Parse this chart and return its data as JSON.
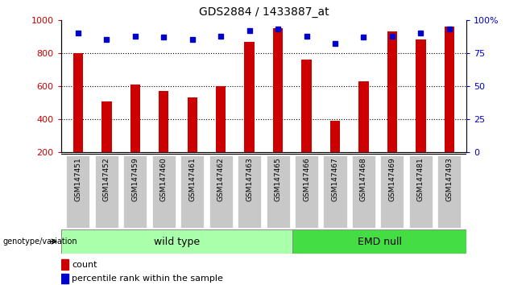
{
  "title": "GDS2884 / 1433887_at",
  "samples": [
    "GSM147451",
    "GSM147452",
    "GSM147459",
    "GSM147460",
    "GSM147461",
    "GSM147462",
    "GSM147463",
    "GSM147465",
    "GSM147466",
    "GSM147467",
    "GSM147468",
    "GSM147469",
    "GSM147481",
    "GSM147493"
  ],
  "counts": [
    800,
    510,
    610,
    570,
    530,
    600,
    870,
    950,
    760,
    390,
    630,
    930,
    880,
    960
  ],
  "percentiles": [
    90,
    85,
    88,
    87,
    85,
    88,
    92,
    93,
    88,
    82,
    87,
    88,
    90,
    93
  ],
  "wt_count": 8,
  "bar_color": "#CC0000",
  "dot_color": "#0000CC",
  "left_ylim": [
    200,
    1000
  ],
  "right_ylim": [
    0,
    100
  ],
  "left_yticks": [
    200,
    400,
    600,
    800,
    1000
  ],
  "right_yticks": [
    0,
    25,
    50,
    75,
    100
  ],
  "right_yticklabels": [
    "0",
    "25",
    "50",
    "75",
    "100%"
  ],
  "grid_values": [
    400,
    600,
    800
  ],
  "wt_color": "#AAFFAA",
  "emd_color": "#44DD44",
  "tickbox_color": "#C8C8C8",
  "background_color": "#ffffff",
  "genotype_label": "genotype/variation",
  "wt_label": "wild type",
  "emd_label": "EMD null",
  "legend_count": "count",
  "legend_pct": "percentile rank within the sample"
}
